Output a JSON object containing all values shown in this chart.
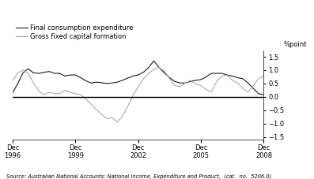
{
  "ylabel": "%point",
  "source_text": "Source: Australian National Accounts: National Income, Expenditure and Product,  (cat.  no.  5206.0)",
  "legend_labels": [
    "Final consumption expenditure",
    "Gross fixed capital formation"
  ],
  "line1_color": "#1a1a1a",
  "line2_color": "#aaaaaa",
  "background_color": "#ffffff",
  "ylim": [
    -1.6,
    1.75
  ],
  "yticks": [
    -1.5,
    -1.0,
    -0.5,
    0.0,
    0.5,
    1.0,
    1.5
  ],
  "x_tick_positions": [
    0,
    12,
    24,
    36,
    48
  ],
  "x_tick_labels": [
    "Dec\n1996",
    "Dec\n1999",
    "Dec\n2002",
    "Dec\n2005",
    "Dec\n2008"
  ],
  "time_points": [
    0,
    1,
    2,
    3,
    4,
    5,
    6,
    7,
    8,
    9,
    10,
    11,
    12,
    13,
    14,
    15,
    16,
    17,
    18,
    19,
    20,
    21,
    22,
    23,
    24,
    25,
    26,
    27,
    28,
    29,
    30,
    31,
    32,
    33,
    34,
    35,
    36,
    37,
    38,
    39,
    40,
    41,
    42,
    43,
    44,
    45,
    46,
    47,
    48
  ],
  "final_consumption": [
    0.15,
    0.5,
    0.9,
    1.05,
    0.9,
    0.88,
    0.92,
    0.95,
    0.88,
    0.88,
    0.78,
    0.82,
    0.82,
    0.72,
    0.6,
    0.52,
    0.55,
    0.53,
    0.5,
    0.52,
    0.55,
    0.62,
    0.7,
    0.78,
    0.82,
    0.92,
    1.1,
    1.35,
    1.1,
    0.9,
    0.72,
    0.58,
    0.52,
    0.52,
    0.58,
    0.62,
    0.65,
    0.75,
    0.88,
    0.88,
    0.88,
    0.82,
    0.78,
    0.72,
    0.68,
    0.52,
    0.32,
    0.12,
    0.08
  ],
  "gross_fixed": [
    0.6,
    0.9,
    1.0,
    0.88,
    0.52,
    0.22,
    0.08,
    0.18,
    0.12,
    0.12,
    0.25,
    0.18,
    0.12,
    0.08,
    -0.08,
    -0.28,
    -0.48,
    -0.65,
    -0.82,
    -0.78,
    -0.95,
    -0.72,
    -0.35,
    0.05,
    0.38,
    0.68,
    0.88,
    1.02,
    1.1,
    0.98,
    0.68,
    0.42,
    0.38,
    0.52,
    0.62,
    0.48,
    0.42,
    0.28,
    0.18,
    0.58,
    0.78,
    0.82,
    0.62,
    0.52,
    0.32,
    0.18,
    0.42,
    0.68,
    0.78
  ]
}
